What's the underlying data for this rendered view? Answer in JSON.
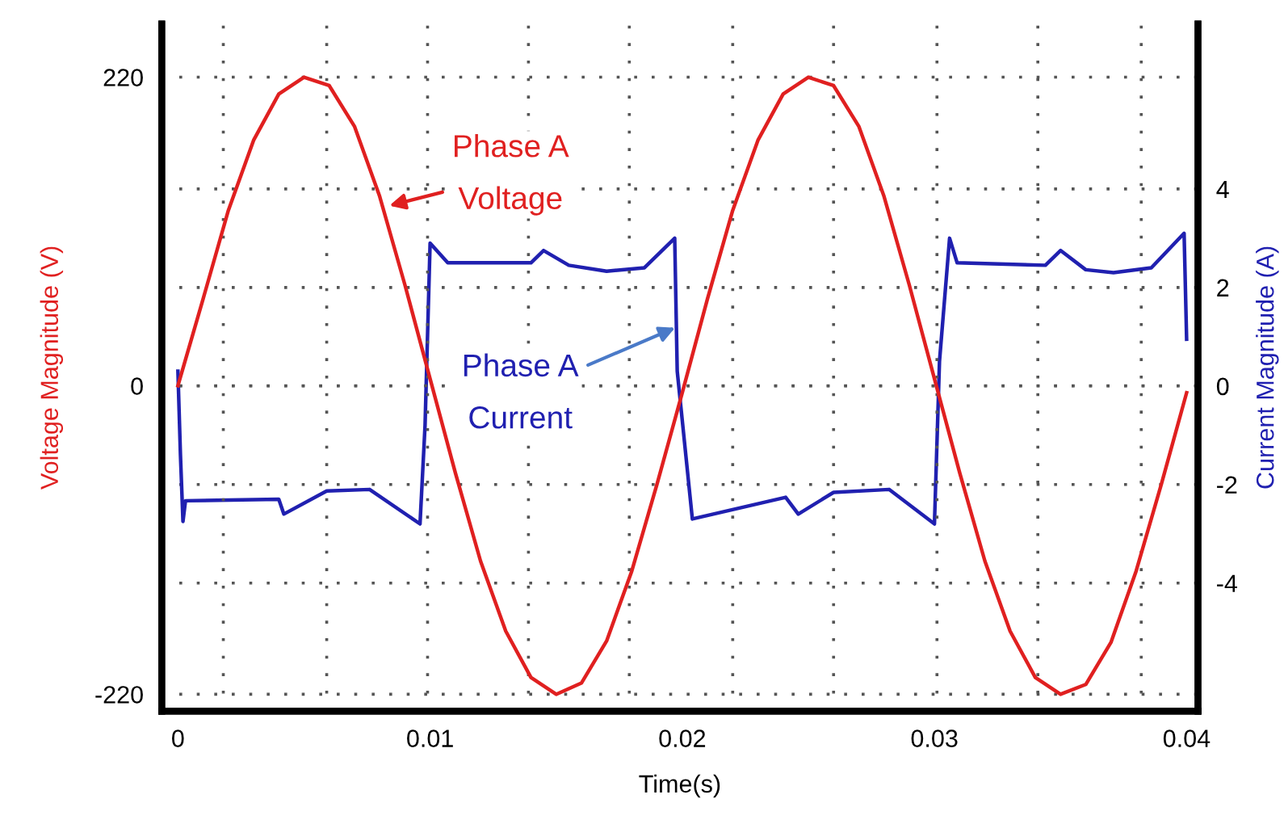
{
  "chart_data": {
    "type": "line",
    "xlabel": "Time(s)",
    "ylabel": "Voltage Magnitude (V)",
    "y2label": "Current Magnitude (A)",
    "xlim": [
      -0.00064,
      0.04045
    ],
    "ylim": [
      -232,
      258
    ],
    "y2lim": [
      -6.6,
      7.35
    ],
    "xticks": [
      0,
      0.01,
      0.02,
      0.03,
      0.04,
      {
        "value": 0.0018,
        "label": null
      },
      {
        "value": 0.0059,
        "label": null
      },
      {
        "value": 0.0099,
        "label": null
      },
      {
        "value": 0.0139,
        "label": null
      },
      {
        "value": 0.0179,
        "label": null
      },
      {
        "value": 0.022,
        "label": null
      },
      {
        "value": 0.026,
        "label": null
      },
      {
        "value": 0.0301,
        "label": null
      },
      {
        "value": 0.0341,
        "label": null
      },
      {
        "value": 0.0382,
        "label": null
      }
    ],
    "yticks": [
      220,
      0,
      -220
    ],
    "y2ticks": [
      4,
      2,
      0,
      -2,
      -4
    ],
    "grid": true,
    "line_style": "solid",
    "series": [
      {
        "name": null,
        "color": "#e02020",
        "x": [
          0,
          0.001,
          0.002,
          0.003,
          0.004,
          0.005,
          0.006,
          0.007,
          0.008,
          0.009,
          0.01,
          0.011,
          0.012,
          0.013,
          0.014,
          0.015,
          0.016,
          0.017,
          0.018,
          0.019,
          0.02,
          0.021,
          0.022,
          0.023,
          0.024,
          0.025,
          0.026,
          0.027,
          0.028,
          0.029,
          0.03,
          0.031,
          0.032,
          0.033,
          0.034,
          0.035,
          0.036,
          0.037,
          0.038,
          0.039,
          0.04
        ],
        "values": [
          0,
          62,
          125,
          175,
          208,
          220,
          214,
          185,
          135,
          72,
          5,
          -62,
          -125,
          -175,
          -208,
          -220,
          -212,
          -182,
          -132,
          -70,
          -5,
          62,
          125,
          175,
          208,
          220,
          214,
          185,
          135,
          72,
          5,
          -62,
          -125,
          -175,
          -208,
          -220,
          -213,
          -183,
          -132,
          -70,
          -5
        ]
      },
      {
        "name": null,
        "color": "#2020b0",
        "axis": "y2",
        "x": [
          0,
          0.0001,
          0.0002,
          0.0003,
          0.004,
          0.0042,
          0.0059,
          0.0076,
          0.0096,
          0.0098,
          0.01,
          0.0107,
          0.014,
          0.0145,
          0.0155,
          0.017,
          0.0185,
          0.0197,
          0.0198,
          0.0204,
          0.0241,
          0.0246,
          0.026,
          0.0282,
          0.03,
          0.0302,
          0.0306,
          0.0309,
          0.0344,
          0.035,
          0.036,
          0.0371,
          0.0386,
          0.0399,
          0.04
        ],
        "values": [
          0.3,
          -1.4,
          -2.75,
          -2.33,
          -2.3,
          -2.6,
          -2.13,
          -2.1,
          -2.8,
          -0.8,
          2.9,
          2.5,
          2.5,
          2.75,
          2.45,
          2.33,
          2.4,
          3.0,
          0.3,
          -2.7,
          -2.26,
          -2.6,
          -2.16,
          -2.1,
          -2.8,
          0.5,
          3.0,
          2.5,
          2.45,
          2.75,
          2.36,
          2.3,
          2.4,
          3.1,
          0.95
        ]
      }
    ],
    "annotations": [
      {
        "text": "Phase A\nVoltage",
        "x": 0.0083,
        "y": 128
      },
      {
        "text": "Phase A\nCurrent",
        "x": 0.0198,
        "y": 42
      }
    ]
  }
}
